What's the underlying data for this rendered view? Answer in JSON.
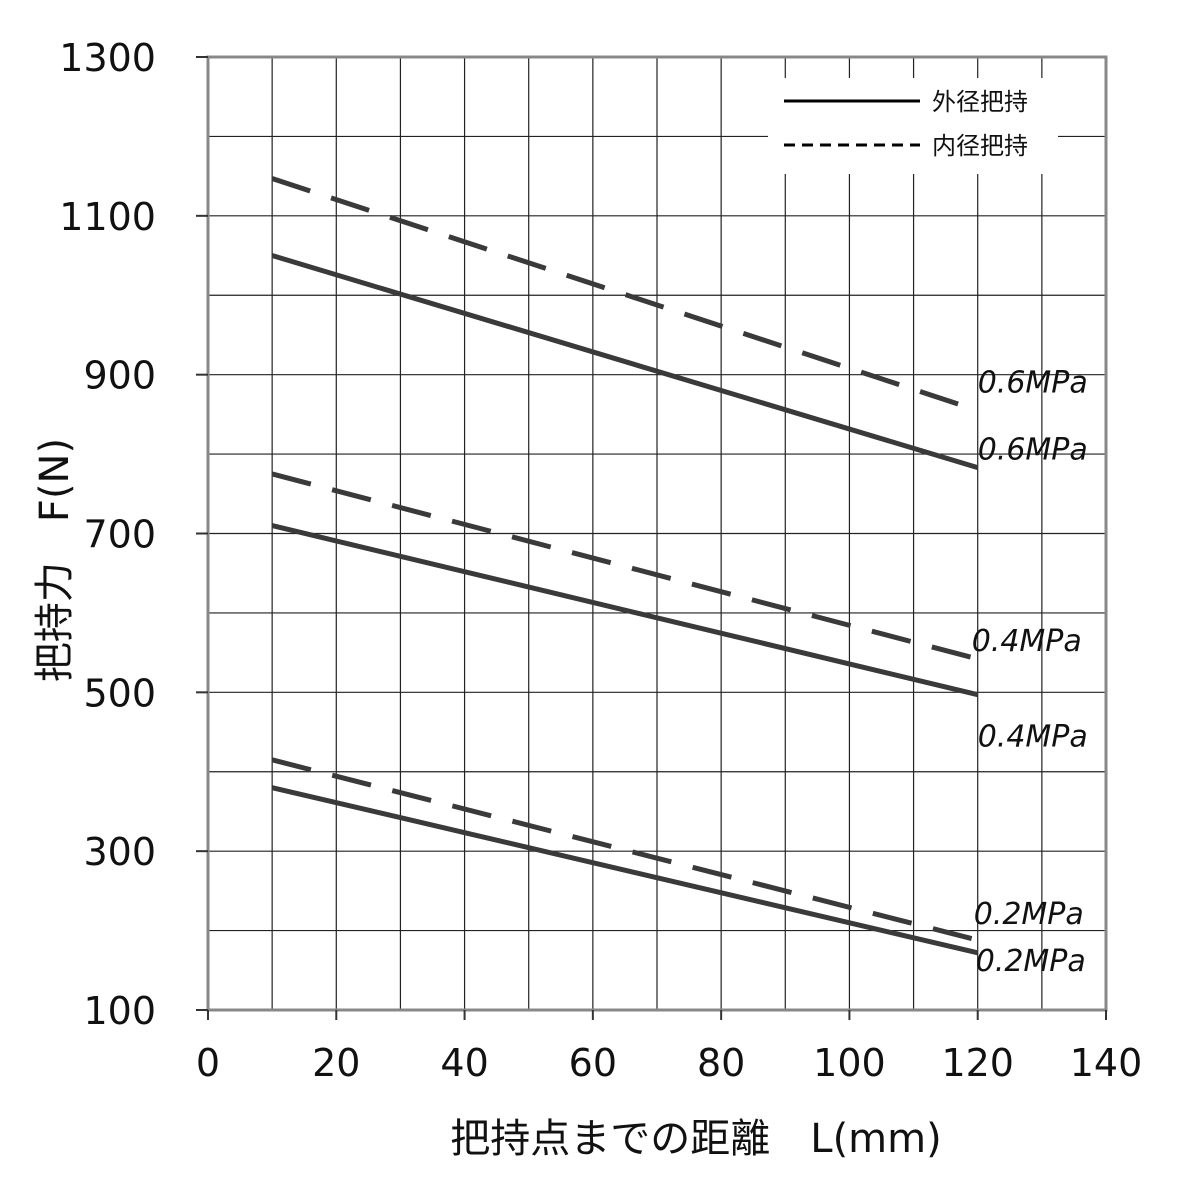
{
  "chart_data": {
    "type": "line",
    "title": "",
    "xlabel": "把持点までの距離　L(mm)",
    "ylabel": "把持力　F(N)",
    "xlim": [
      0,
      140
    ],
    "ylim": [
      100,
      1300
    ],
    "x_ticks": [
      0,
      20,
      40,
      60,
      80,
      100,
      120,
      140
    ],
    "y_ticks": [
      100,
      300,
      500,
      700,
      900,
      1100,
      1300
    ],
    "x_grid_step": 10,
    "y_grid_step": 100,
    "grid": true,
    "legend_position": "top-right",
    "legend": [
      {
        "label": "外径把持",
        "style": "solid"
      },
      {
        "label": "内径把持",
        "style": "dashed"
      }
    ],
    "series": [
      {
        "label": "0.6MPa",
        "style": "dashed",
        "x": [
          10,
          120
        ],
        "y": [
          1147,
          855
        ]
      },
      {
        "label": "0.6MPa",
        "style": "solid",
        "x": [
          10,
          120
        ],
        "y": [
          1050,
          783
        ]
      },
      {
        "label": "0.4MPa",
        "style": "dashed",
        "x": [
          10,
          120
        ],
        "y": [
          775,
          542
        ]
      },
      {
        "label": "0.4MPa",
        "style": "solid",
        "x": [
          10,
          120
        ],
        "y": [
          710,
          497
        ]
      },
      {
        "label": "0.2MPa",
        "style": "dashed",
        "x": [
          10,
          120
        ],
        "y": [
          415,
          188
        ]
      },
      {
        "label": "0.2MPa",
        "style": "solid",
        "x": [
          10,
          120
        ],
        "y": [
          380,
          172
        ]
      }
    ],
    "colors": {
      "line": "#3a3a3a",
      "grid": "#222222",
      "frame": "#888888"
    }
  }
}
